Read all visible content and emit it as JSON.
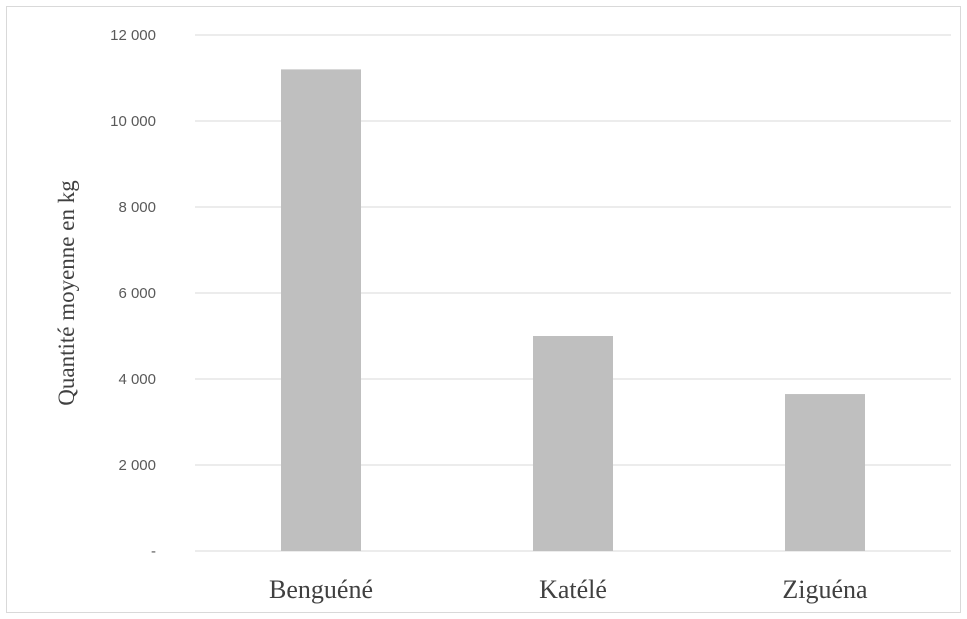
{
  "chart_data": {
    "type": "bar",
    "categories": [
      "Benguéné",
      "Katélé",
      "Ziguéna"
    ],
    "values": [
      11200,
      5000,
      3650
    ],
    "ylabel": "Quantité moyenne en kg",
    "xlabel": "",
    "ylim": [
      0,
      12000
    ],
    "yticks": [
      0,
      2000,
      4000,
      6000,
      8000,
      10000,
      12000
    ],
    "ytick_labels": [
      "-",
      "2 000",
      "4 000",
      "6 000",
      "8 000",
      "10 000",
      "12 000"
    ],
    "grid": "horizontal",
    "legend": "none",
    "bar_color": "#bfbfbf",
    "gridline_color": "#d9d9d9"
  }
}
